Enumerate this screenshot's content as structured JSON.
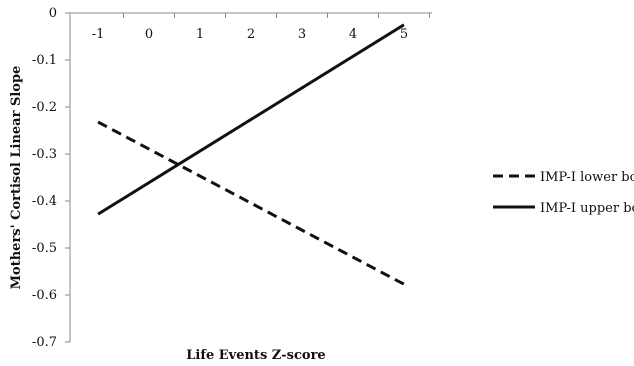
{
  "chart_data": {
    "type": "line",
    "title": "",
    "xlabel": "Life Events Z-score",
    "ylabel": "Mothers'  Cortisol Linear Slope",
    "x_ticks": [
      "-1",
      "0",
      "1",
      "2",
      "3",
      "4",
      "5"
    ],
    "y_ticks": [
      "0",
      "-0.1",
      "-0.2",
      "-0.3",
      "-0.4",
      "-0.5",
      "-0.6",
      "-0.7"
    ],
    "xlim": [
      -1.55,
      5.55
    ],
    "ylim": [
      -0.7,
      0
    ],
    "x_axis_position": "top",
    "grid": false,
    "legend_position": "right",
    "series": [
      {
        "name": "IMP-I lower bound",
        "style": "dashed",
        "color": "#111111",
        "x": [
          -1,
          5
        ],
        "y": [
          -0.232,
          -0.577
        ]
      },
      {
        "name": "IMP-I upper bound",
        "style": "solid",
        "color": "#111111",
        "x": [
          -1,
          5
        ],
        "y": [
          -0.428,
          -0.025
        ]
      }
    ]
  }
}
